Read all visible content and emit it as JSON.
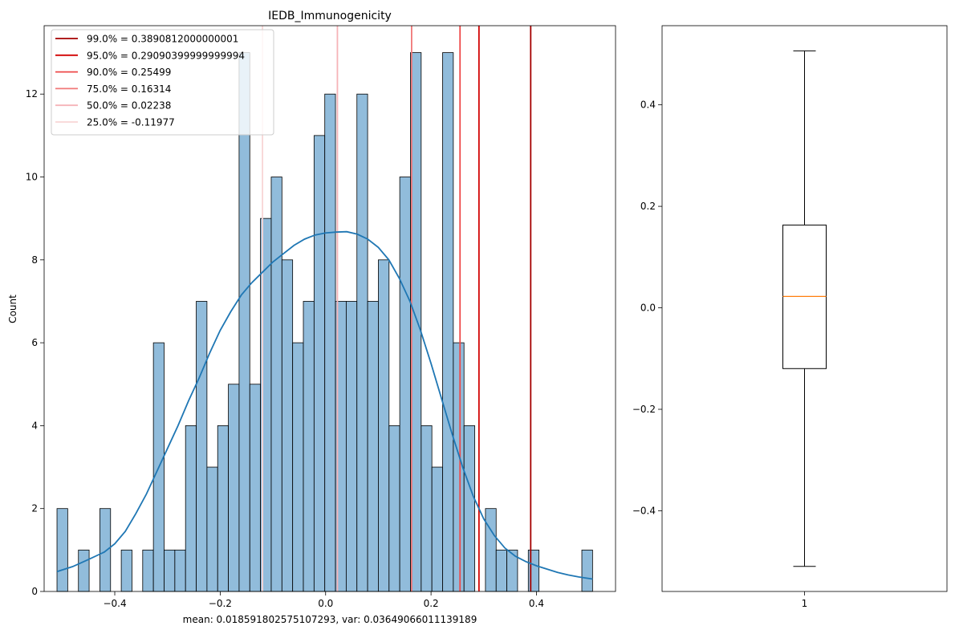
{
  "chart_data": [
    {
      "type": "histogram",
      "title": "IEDB_Immunogenicity",
      "xlabel": "mean: 0.018591802575107293, var: 0.03649066011139189",
      "ylabel": "Count",
      "xlim": [
        -0.534,
        0.55
      ],
      "ylim": [
        0,
        13.65
      ],
      "xticks": [
        {
          "value": -0.4,
          "label": "−0.4"
        },
        {
          "value": -0.2,
          "label": "−0.2"
        },
        {
          "value": 0.0,
          "label": "0.0"
        },
        {
          "value": 0.2,
          "label": "0.2"
        },
        {
          "value": 0.4,
          "label": "0.4"
        }
      ],
      "yticks": [
        {
          "value": 0,
          "label": "0"
        },
        {
          "value": 2,
          "label": "2"
        },
        {
          "value": 4,
          "label": "4"
        },
        {
          "value": 6,
          "label": "6"
        },
        {
          "value": 8,
          "label": "8"
        },
        {
          "value": 10,
          "label": "10"
        },
        {
          "value": 12,
          "label": "12"
        }
      ],
      "bin_start": -0.5096,
      "bin_width": 0.02032,
      "counts": [
        2,
        0,
        1,
        0,
        2,
        0,
        1,
        0,
        1,
        6,
        1,
        1,
        4,
        7,
        3,
        4,
        5,
        13,
        5,
        9,
        10,
        8,
        6,
        7,
        11,
        12,
        7,
        7,
        12,
        7,
        8,
        4,
        10,
        13,
        4,
        3,
        13,
        6,
        4,
        0,
        2,
        1,
        1,
        0,
        1,
        0,
        0,
        0,
        0,
        1
      ],
      "bar_color": "#7eb0d5",
      "kde": {
        "color": "#1f77b4",
        "x": [
          -0.5096,
          -0.48,
          -0.45,
          -0.42,
          -0.4,
          -0.38,
          -0.36,
          -0.34,
          -0.32,
          -0.3,
          -0.28,
          -0.26,
          -0.24,
          -0.22,
          -0.2,
          -0.18,
          -0.16,
          -0.14,
          -0.12,
          -0.1,
          -0.08,
          -0.06,
          -0.04,
          -0.02,
          0.0,
          0.02,
          0.04,
          0.06,
          0.08,
          0.1,
          0.12,
          0.14,
          0.16,
          0.18,
          0.2,
          0.22,
          0.24,
          0.26,
          0.28,
          0.3,
          0.32,
          0.34,
          0.36,
          0.38,
          0.4,
          0.42,
          0.44,
          0.46,
          0.48,
          0.5064
        ],
        "y": [
          0.48,
          0.6,
          0.77,
          0.95,
          1.15,
          1.45,
          1.88,
          2.35,
          2.9,
          3.45,
          4.0,
          4.6,
          5.15,
          5.75,
          6.3,
          6.75,
          7.15,
          7.45,
          7.7,
          7.95,
          8.15,
          8.35,
          8.5,
          8.6,
          8.65,
          8.67,
          8.68,
          8.62,
          8.5,
          8.3,
          8.0,
          7.55,
          7.0,
          6.3,
          5.5,
          4.65,
          3.8,
          3.0,
          2.3,
          1.75,
          1.35,
          1.05,
          0.85,
          0.72,
          0.62,
          0.54,
          0.46,
          0.4,
          0.35,
          0.3
        ]
      },
      "quantile_lines": [
        {
          "label": "99.0% = 0.3890812000000001",
          "value": 0.3890812000000001,
          "color": "#a50000"
        },
        {
          "label": "95.0% = 0.29090399999999994",
          "value": 0.29090399999999994,
          "color": "#d20000"
        },
        {
          "label": "90.0% = 0.25499",
          "value": 0.25499,
          "color": "#ee4a4a"
        },
        {
          "label": "75.0% = 0.16314",
          "value": 0.16314,
          "color": "#f07878"
        },
        {
          "label": "50.0% = 0.02238",
          "value": 0.02238,
          "color": "#f6b3b8"
        },
        {
          "label": "25.0% = -0.11977",
          "value": -0.11977,
          "color": "#f8d6d6"
        }
      ],
      "legend_position": "upper-left"
    },
    {
      "type": "boxplot",
      "ylim": [
        -0.559,
        0.556
      ],
      "yticks": [
        {
          "value": -0.4,
          "label": "−0.4"
        },
        {
          "value": -0.2,
          "label": "−0.2"
        },
        {
          "value": 0.0,
          "label": "0.0"
        },
        {
          "value": 0.2,
          "label": "0.2"
        },
        {
          "value": 0.4,
          "label": "0.4"
        }
      ],
      "xticks": [
        {
          "value": 1,
          "label": "1"
        }
      ],
      "whisker_low": -0.5096,
      "q1": -0.11977,
      "median": 0.02238,
      "q3": 0.16314,
      "whisker_high": 0.5064,
      "median_color": "#ff7f0e"
    }
  ]
}
